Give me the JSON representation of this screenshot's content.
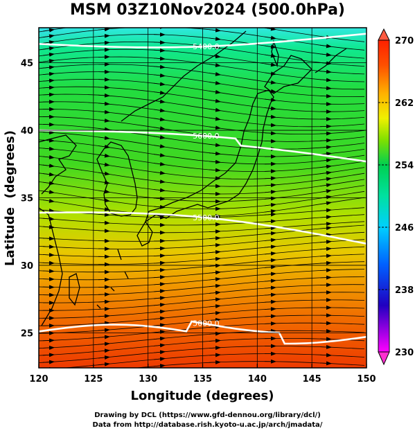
{
  "title": "MSM 03Z10Nov2024 (500.0hPa)",
  "map": {
    "xlabel": "Longitude (degrees)",
    "ylabel": "Latitude  (degrees)",
    "lon_ticks": [
      120,
      125,
      130,
      135,
      140,
      145,
      150
    ],
    "lat_ticks": [
      25,
      30,
      35,
      40,
      45
    ],
    "lon_range": [
      120,
      150
    ],
    "lat_range": [
      22.4,
      47.6
    ]
  },
  "colorbar": {
    "ticks": [
      270,
      262,
      254,
      246,
      238,
      230
    ],
    "range": [
      230,
      270
    ],
    "colors": [
      "#ff00ff",
      "#2000c0",
      "#0060ff",
      "#00d0ff",
      "#00e0a0",
      "#00d050",
      "#80e000",
      "#f0f000",
      "#ffb000",
      "#ff5000",
      "#ff2000"
    ]
  },
  "contours": [
    {
      "label": "5000.0",
      "lat_at_120": 25.1
    },
    {
      "label": "5500.0",
      "lat_at_120": 33.9
    },
    {
      "label": "5600.0",
      "lat_at_120": 40.0
    },
    {
      "label": "5400.0",
      "lat_at_120": 46.4
    }
  ],
  "credits": {
    "line1": "Drawing by DCL (https://www.gfd-dennou.org/library/dcl/)",
    "line2": "Data from http://database.rish.kyoto-u.ac.jp/arch/jmadata/"
  }
}
